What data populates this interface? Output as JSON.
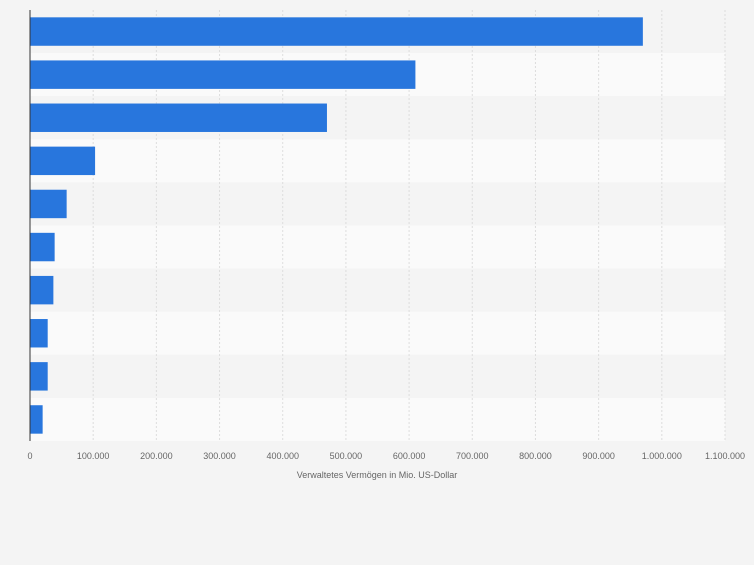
{
  "chart_data": {
    "type": "bar",
    "orientation": "horizontal",
    "categories": [
      "",
      "",
      "",
      "",
      "",
      "",
      "",
      "",
      "",
      ""
    ],
    "values": [
      970000,
      610000,
      470000,
      103000,
      58000,
      39000,
      37000,
      28000,
      28000,
      20000
    ],
    "title": "",
    "xlabel": "Verwaltetes Vermögen in Mio. US-Dollar",
    "ylabel": "",
    "xlim": [
      0,
      1100000
    ],
    "x_ticks": [
      0,
      100000,
      200000,
      300000,
      400000,
      500000,
      600000,
      700000,
      800000,
      900000,
      1000000,
      1100000
    ],
    "x_tick_labels": [
      "0",
      "100.000",
      "200.000",
      "300.000",
      "400.000",
      "500.000",
      "600.000",
      "700.000",
      "800.000",
      "900.000",
      "1.000.000",
      "1.100.000"
    ],
    "grid": true,
    "bar_color": "#2876dd"
  }
}
